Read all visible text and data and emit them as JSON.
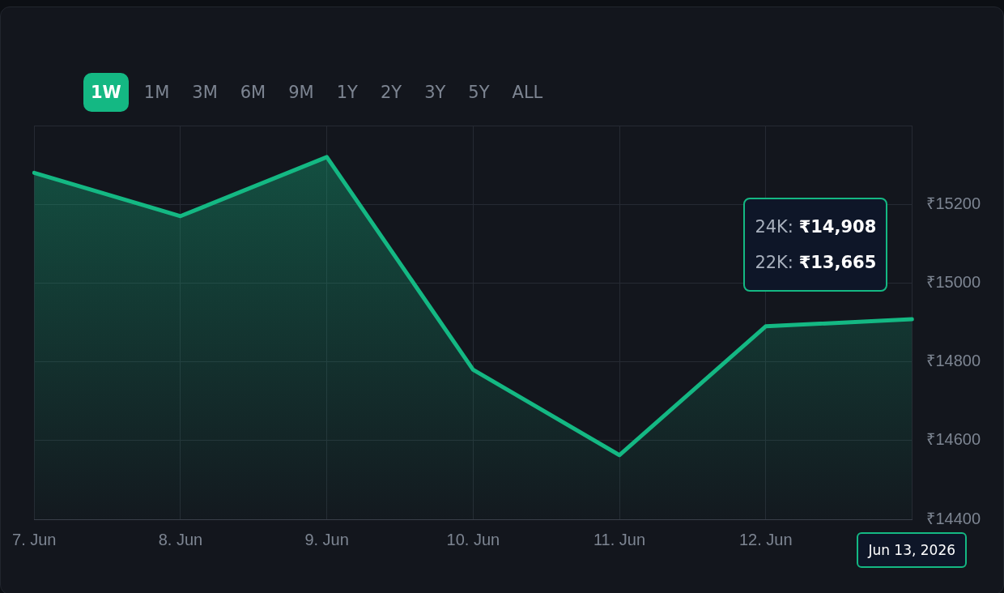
{
  "chart_data": {
    "type": "area",
    "categories": [
      "7. Jun",
      "8. Jun",
      "9. Jun",
      "10. Jun",
      "11. Jun",
      "12. Jun",
      null
    ],
    "series": [
      {
        "color": "#14b883",
        "values": [
          15280,
          15170,
          15320,
          14780,
          14563,
          14890,
          14908
        ]
      }
    ],
    "ylim": [
      14400,
      15400
    ],
    "yticks": [
      {
        "value": 14400,
        "label": "₹14400"
      },
      {
        "value": 14600,
        "label": "₹14600"
      },
      {
        "value": 14800,
        "label": "₹14800"
      },
      {
        "value": 15000,
        "label": "₹15000"
      },
      {
        "value": 15200,
        "label": "₹15200"
      },
      {
        "value": 15400,
        "label": null
      }
    ],
    "grid": true,
    "legend": false,
    "marker": "none",
    "line_style": "solid",
    "annotations": [
      "1W",
      "1M",
      "3M",
      "6M",
      "9M",
      "1Y",
      "2Y",
      "3Y",
      "5Y",
      "ALL",
      "24K: ₹14,908",
      "22K: ₹13,665",
      "Jun 13, 2026"
    ]
  }
}
